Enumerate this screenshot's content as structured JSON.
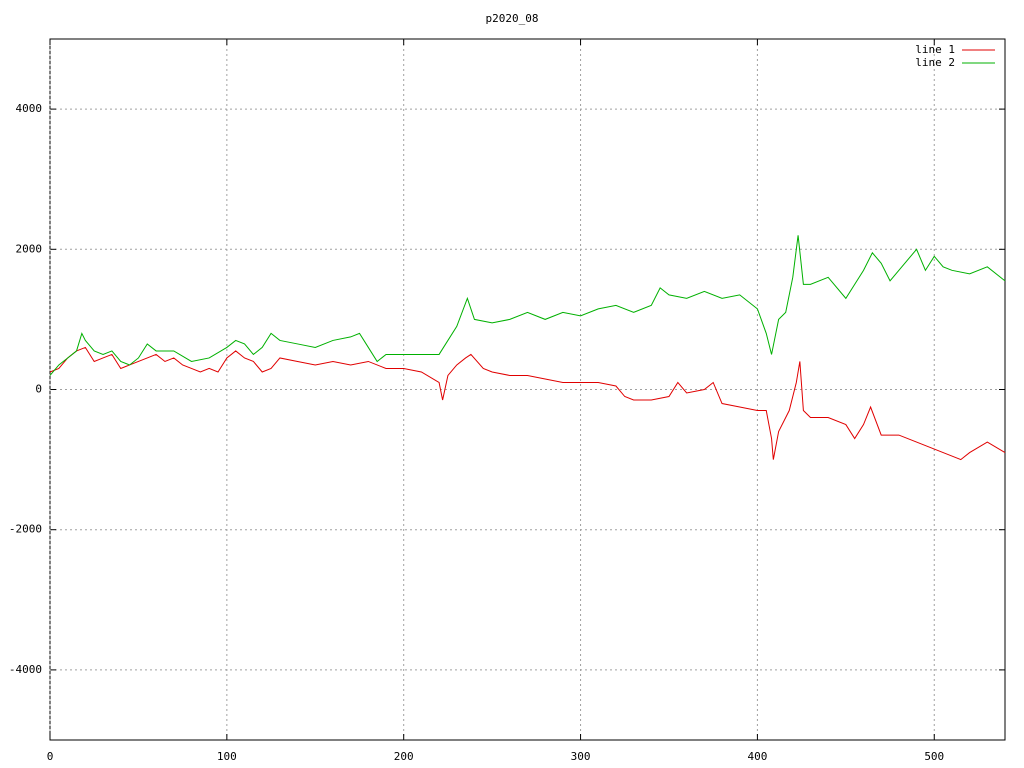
{
  "chart_data": {
    "type": "line",
    "title": "p2020_08",
    "xlim": [
      0,
      540
    ],
    "ylim": [
      -5000,
      5000
    ],
    "xticks": [
      0,
      100,
      200,
      300,
      400,
      500
    ],
    "yticks": [
      -4000,
      -2000,
      0,
      2000,
      4000
    ],
    "grid": true,
    "legend": "top-right",
    "series": [
      {
        "name": "line 1",
        "color": "#e00000",
        "x": [
          0,
          5,
          10,
          15,
          20,
          25,
          30,
          35,
          40,
          45,
          50,
          55,
          60,
          65,
          70,
          75,
          80,
          85,
          90,
          95,
          100,
          105,
          110,
          115,
          120,
          125,
          130,
          140,
          150,
          160,
          170,
          180,
          190,
          200,
          210,
          220,
          222,
          225,
          230,
          235,
          238,
          245,
          250,
          260,
          270,
          280,
          290,
          300,
          310,
          320,
          325,
          330,
          340,
          350,
          355,
          360,
          370,
          375,
          380,
          390,
          400,
          405,
          408,
          409,
          412,
          418,
          422,
          424,
          426,
          430,
          440,
          450,
          455,
          460,
          464,
          470,
          480,
          490,
          500,
          510,
          515,
          520,
          530,
          540
        ],
        "values": [
          250,
          300,
          450,
          550,
          600,
          400,
          450,
          500,
          300,
          350,
          400,
          450,
          500,
          400,
          450,
          350,
          300,
          250,
          300,
          250,
          450,
          550,
          450,
          400,
          250,
          300,
          450,
          400,
          350,
          400,
          350,
          400,
          300,
          300,
          250,
          100,
          -150,
          200,
          350,
          450,
          500,
          300,
          250,
          200,
          200,
          150,
          100,
          100,
          100,
          50,
          -100,
          -150,
          -150,
          -100,
          100,
          -50,
          0,
          100,
          -200,
          -250,
          -300,
          -300,
          -700,
          -1000,
          -600,
          -300,
          100,
          400,
          -300,
          -400,
          -400,
          -500,
          -700,
          -500,
          -250,
          -650,
          -650,
          -750,
          -850,
          -950,
          -1000,
          -900,
          -750,
          -900
        ]
      },
      {
        "name": "line 2",
        "color": "#00b000",
        "x": [
          0,
          5,
          10,
          15,
          18,
          20,
          25,
          30,
          35,
          40,
          45,
          50,
          55,
          60,
          70,
          80,
          90,
          100,
          105,
          110,
          115,
          120,
          125,
          130,
          140,
          150,
          160,
          170,
          175,
          180,
          185,
          190,
          200,
          210,
          220,
          230,
          236,
          240,
          250,
          260,
          270,
          280,
          290,
          300,
          310,
          320,
          330,
          340,
          345,
          350,
          360,
          370,
          380,
          390,
          400,
          405,
          408,
          412,
          416,
          420,
          423,
          426,
          430,
          440,
          450,
          455,
          460,
          465,
          470,
          475,
          480,
          490,
          495,
          500,
          505,
          510,
          520,
          530,
          540
        ],
        "values": [
          200,
          350,
          450,
          550,
          800,
          700,
          550,
          500,
          550,
          400,
          350,
          450,
          650,
          550,
          550,
          400,
          450,
          600,
          700,
          650,
          500,
          600,
          800,
          700,
          650,
          600,
          700,
          750,
          800,
          600,
          400,
          500,
          500,
          500,
          500,
          900,
          1300,
          1000,
          950,
          1000,
          1100,
          1000,
          1100,
          1050,
          1150,
          1200,
          1100,
          1200,
          1450,
          1350,
          1300,
          1400,
          1300,
          1350,
          1150,
          800,
          500,
          1000,
          1100,
          1600,
          2200,
          1500,
          1500,
          1600,
          1300,
          1500,
          1700,
          1950,
          1800,
          1550,
          1700,
          2000,
          1700,
          1900,
          1750,
          1700,
          1650,
          1750,
          1550
        ]
      }
    ]
  }
}
